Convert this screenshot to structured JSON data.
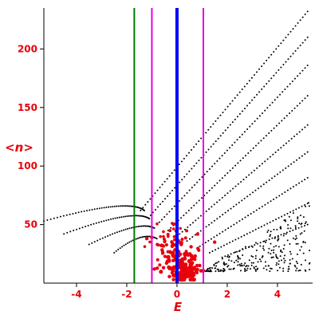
{
  "chart_data": {
    "type": "scatter",
    "xlabel": "E",
    "ylabel": "<n>",
    "xlim": [
      -5.3,
      5.4
    ],
    "ylim": [
      0,
      235
    ],
    "x_ticks": [
      -4,
      -2,
      0,
      2,
      4
    ],
    "y_ticks": [
      50,
      100,
      150,
      200
    ],
    "x_tick_labels": [
      "-4",
      "-2",
      "0",
      "2",
      "4"
    ],
    "y_tick_labels": [
      "50",
      "100",
      "150",
      "200"
    ],
    "grid": false,
    "vertical_lines": [
      {
        "x": -1.7,
        "color": "#007a00"
      },
      {
        "x": -1.0,
        "color": "#e600e6"
      },
      {
        "x": 0.0,
        "color": "#0000ff"
      },
      {
        "x": 1.05,
        "color": "#e600e6"
      }
    ],
    "series": [
      {
        "color": "#000000",
        "families": [
          {
            "kind": "linear",
            "x": [
              -1.45,
              5.2
            ],
            "y": [
              62,
              232
            ],
            "n": 70
          },
          {
            "kind": "linear",
            "x": [
              -1.05,
              5.2
            ],
            "y": [
              58,
              210
            ],
            "n": 66
          },
          {
            "kind": "linear",
            "x": [
              -0.7,
              5.2
            ],
            "y": [
              52,
              186
            ],
            "n": 60
          },
          {
            "kind": "linear",
            "x": [
              -0.35,
              5.2
            ],
            "y": [
              45,
              160
            ],
            "n": 55
          },
          {
            "kind": "linear",
            "x": [
              0.0,
              5.2
            ],
            "y": [
              40,
              135
            ],
            "n": 50
          },
          {
            "kind": "linear",
            "x": [
              0.4,
              5.2
            ],
            "y": [
              36,
              112
            ],
            "n": 45
          },
          {
            "kind": "linear",
            "x": [
              0.8,
              5.2
            ],
            "y": [
              30,
              90
            ],
            "n": 40
          },
          {
            "kind": "linear",
            "x": [
              1.3,
              5.2
            ],
            "y": [
              26,
              68
            ],
            "n": 35
          },
          {
            "kind": "linear",
            "x": [
              1.8,
              5.2
            ],
            "y": [
              22,
              50
            ],
            "n": 30
          },
          {
            "kind": "arc",
            "x": [
              -5.3,
              -1.9,
              -1.3
            ],
            "y": [
              53,
              73,
              62
            ],
            "n": 50
          },
          {
            "kind": "arc",
            "x": [
              -4.5,
              -1.7,
              -1.1
            ],
            "y": [
              42,
              64,
              55
            ],
            "n": 44
          },
          {
            "kind": "arc",
            "x": [
              -3.5,
              -1.5,
              -0.9
            ],
            "y": [
              33,
              54,
              47
            ],
            "n": 36
          },
          {
            "kind": "arc",
            "x": [
              -2.5,
              -1.4,
              -0.8
            ],
            "y": [
              26,
              45,
              38
            ],
            "n": 28
          }
        ],
        "cloud": {
          "x": [
            1.0,
            5.3
          ],
          "y": [
            10,
            70
          ],
          "n": 260,
          "seed": 7
        }
      },
      {
        "color": "#e8000b",
        "clusters": [
          {
            "x": 0.35,
            "y": 10,
            "sx": 0.25,
            "sy": 5,
            "n": 90,
            "r": 2.5
          },
          {
            "x": 0.0,
            "y": 20,
            "sx": 0.45,
            "sy": 10,
            "n": 70,
            "r": 2.2
          },
          {
            "x": -0.2,
            "y": 28,
            "sx": 0.4,
            "sy": 8,
            "n": 40,
            "r": 2.0
          },
          {
            "x": -0.3,
            "y": 38,
            "sx": 0.35,
            "sy": 5,
            "n": 18,
            "r": 1.8
          }
        ],
        "points": [
          [
            0.35,
            8
          ],
          [
            0.45,
            12
          ],
          [
            0.2,
            15
          ],
          [
            0.3,
            25
          ],
          [
            0.1,
            35
          ],
          [
            -1.2,
            38
          ],
          [
            -1.0,
            39
          ],
          [
            1.5,
            35
          ],
          [
            0.8,
            15
          ],
          [
            -0.9,
            12
          ]
        ]
      }
    ]
  }
}
